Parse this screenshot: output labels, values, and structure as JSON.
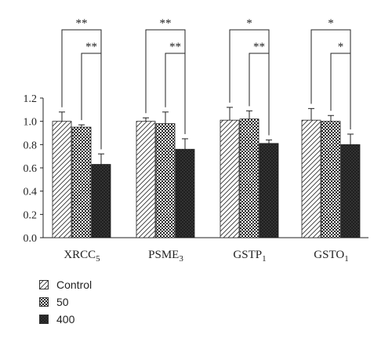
{
  "chart_data": {
    "type": "bar",
    "categories": [
      {
        "base": "XRCC",
        "sub": "5"
      },
      {
        "base": "PSME",
        "sub": "3"
      },
      {
        "base": "GSTP",
        "sub": "1"
      },
      {
        "base": "GSTO",
        "sub": "1"
      }
    ],
    "series": [
      {
        "name": "Control",
        "values": [
          1.0,
          1.0,
          1.01,
          1.01
        ],
        "errors": [
          0.08,
          0.03,
          0.11,
          0.1
        ],
        "pattern": "hatch"
      },
      {
        "name": "50",
        "values": [
          0.95,
          0.98,
          1.02,
          1.0
        ],
        "errors": [
          0.02,
          0.1,
          0.07,
          0.05
        ],
        "pattern": "checker"
      },
      {
        "name": "400",
        "values": [
          0.63,
          0.76,
          0.81,
          0.8
        ],
        "errors": [
          0.09,
          0.09,
          0.03,
          0.09
        ],
        "pattern": "dots"
      }
    ],
    "ylim": [
      0,
      1.2
    ],
    "yticks": [
      "0.0",
      "0.2",
      "0.4",
      "0.6",
      "0.8",
      "1.0",
      "1.2"
    ],
    "significance": [
      {
        "category": 0,
        "outer": "**",
        "inner": "**"
      },
      {
        "category": 1,
        "outer": "**",
        "inner": "**"
      },
      {
        "category": 2,
        "outer": "*",
        "inner": "**"
      },
      {
        "category": 3,
        "outer": "*",
        "inner": "*"
      }
    ],
    "legend_position": "bottom-left"
  },
  "legend": [
    {
      "label": "Control",
      "pattern": "hatch"
    },
    {
      "label": "50",
      "pattern": "checker"
    },
    {
      "label": "400",
      "pattern": "dots"
    }
  ]
}
